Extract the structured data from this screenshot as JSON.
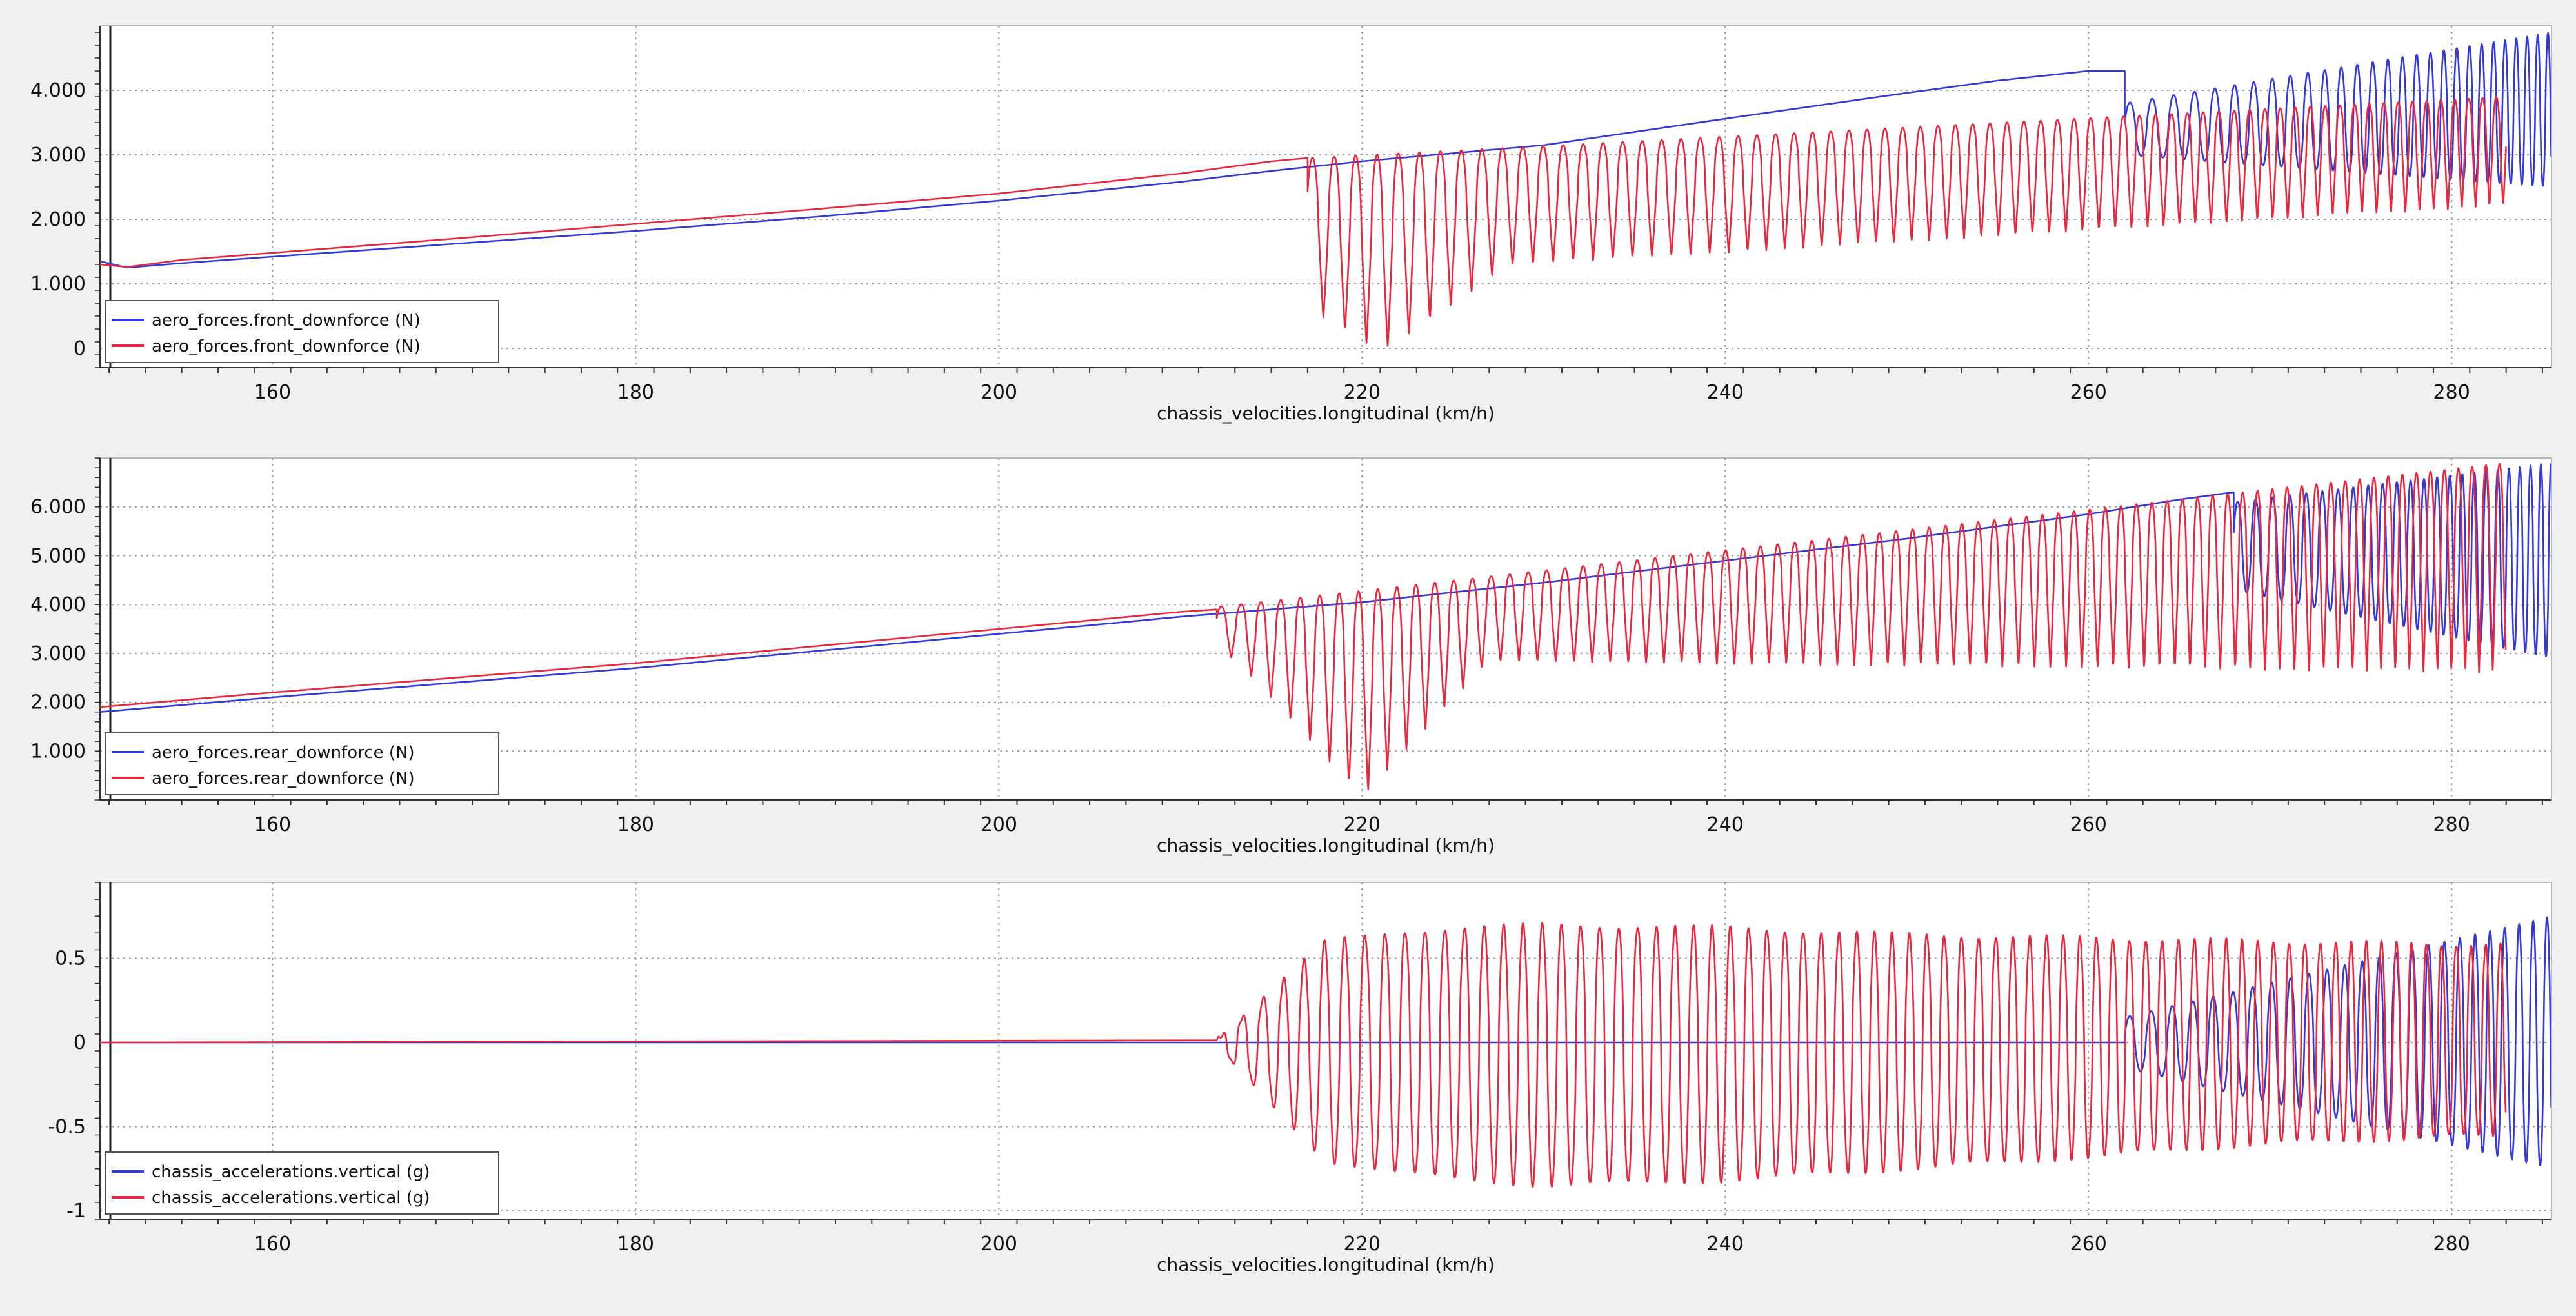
{
  "colors": {
    "series_a": "#3339d6",
    "series_b": "#e8283f",
    "plot_bg": "#ffffff",
    "window_bg": "#f0f0f0",
    "grid": "#9a9a9a",
    "axis": "#333333"
  },
  "chart_data": [
    {
      "type": "line",
      "xlabel": "chassis_velocities.longitudinal (km/h)",
      "ylabel": "",
      "xlim": [
        150.5,
        285.5
      ],
      "ylim": [
        -300,
        5000
      ],
      "xticks": [
        160,
        180,
        200,
        220,
        240,
        260,
        280
      ],
      "xtick_labels": [
        "160",
        "180",
        "200",
        "220",
        "240",
        "260",
        "280"
      ],
      "yticks": [
        0,
        1000,
        2000,
        3000,
        4000
      ],
      "ytick_labels": [
        "0",
        "1.000",
        "2.000",
        "3.000",
        "4.000"
      ],
      "grid": true,
      "legend_position": "bottom-left",
      "series": [
        {
          "name": "aero_forces.front_downforce (N)",
          "color": "#3339d6",
          "x": [
            150.5,
            152,
            155,
            160,
            170,
            180,
            190,
            200,
            210,
            215,
            220,
            230,
            240,
            250,
            255,
            260,
            262
          ],
          "y": [
            1350,
            1250,
            1320,
            1420,
            1620,
            1820,
            2040,
            2290,
            2580,
            2750,
            2900,
            3150,
            3560,
            3960,
            4150,
            4300,
            4300
          ],
          "oscillation": {
            "x_start": 262,
            "x_end": 285.5,
            "center_start": 3400,
            "center_end": 3700,
            "amp_start": 400,
            "amp_end": 1200,
            "period_start": 1.25,
            "period_end": 0.55
          }
        },
        {
          "name": "aero_forces.front_downforce (N)",
          "color": "#e8283f",
          "x": [
            150.5,
            152,
            155,
            160,
            170,
            180,
            190,
            200,
            210,
            215,
            217
          ],
          "y": [
            1300,
            1260,
            1370,
            1480,
            1700,
            1930,
            2160,
            2400,
            2710,
            2900,
            2950
          ],
          "oscillation": {
            "x_start": 217,
            "x_end": 283,
            "peak_start": 2950,
            "peak_end": 3900,
            "trough_start": 1100,
            "trough_end": 2200,
            "trough_peak": -50,
            "trough_peak_x": 221,
            "period_start": 1.2,
            "period_end": 0.75
          }
        }
      ]
    },
    {
      "type": "line",
      "xlabel": "chassis_velocities.longitudinal (km/h)",
      "ylabel": "",
      "xlim": [
        150.5,
        285.5
      ],
      "ylim": [
        0,
        7000
      ],
      "xticks": [
        160,
        180,
        200,
        220,
        240,
        260,
        280
      ],
      "xtick_labels": [
        "160",
        "180",
        "200",
        "220",
        "240",
        "260",
        "280"
      ],
      "yticks": [
        1000,
        2000,
        3000,
        4000,
        5000,
        6000
      ],
      "ytick_labels": [
        "1.000",
        "2.000",
        "3.000",
        "4.000",
        "5.000",
        "6.000"
      ],
      "grid": true,
      "legend_position": "bottom-left",
      "series": [
        {
          "name": "aero_forces.rear_downforce (N)",
          "color": "#3339d6",
          "x": [
            150.5,
            160,
            170,
            180,
            190,
            200,
            210,
            220,
            230,
            240,
            250,
            260,
            265,
            268
          ],
          "y": [
            1800,
            2100,
            2400,
            2700,
            3050,
            3400,
            3750,
            4050,
            4450,
            4900,
            5350,
            5850,
            6150,
            6300
          ],
          "oscillation": {
            "x_start": 268,
            "x_end": 285.5,
            "center_start": 5200,
            "center_end": 4900,
            "amp_start": 900,
            "amp_end": 2000,
            "period_start": 1.0,
            "period_end": 0.55
          }
        },
        {
          "name": "aero_forces.rear_downforce (N)",
          "color": "#e8283f",
          "x": [
            150.5,
            160,
            170,
            180,
            190,
            200,
            210,
            212
          ],
          "y": [
            1900,
            2200,
            2500,
            2800,
            3150,
            3500,
            3850,
            3900
          ],
          "oscillation": {
            "x_start": 212,
            "x_end": 283,
            "peak_start": 3950,
            "peak_end": 6900,
            "trough_start": 2900,
            "trough_end": 2600,
            "trough_peak": 50,
            "trough_peak_x": 220,
            "period_start": 1.1,
            "period_end": 0.75
          }
        }
      ]
    },
    {
      "type": "line",
      "xlabel": "chassis_velocities.longitudinal (km/h)",
      "ylabel": "",
      "xlim": [
        150.5,
        285.5
      ],
      "ylim": [
        -1.05,
        0.95
      ],
      "xticks": [
        160,
        180,
        200,
        220,
        240,
        260,
        280
      ],
      "xtick_labels": [
        "160",
        "180",
        "200",
        "220",
        "240",
        "260",
        "280"
      ],
      "yticks": [
        -1,
        -0.5,
        0,
        0.5
      ],
      "ytick_labels": [
        "-1",
        "-0.5",
        "0",
        "0.5"
      ],
      "grid": true,
      "legend_position": "bottom-left",
      "series": [
        {
          "name": "chassis_accelerations.vertical (g)",
          "color": "#3339d6",
          "x": [
            150.5,
            262
          ],
          "y": [
            0,
            0
          ],
          "oscillation": {
            "x_start": 262,
            "x_end": 285.5,
            "center_start": 0,
            "center_end": 0,
            "amp_start": 0.15,
            "amp_end": 0.75,
            "period_start": 1.2,
            "period_end": 0.75
          }
        },
        {
          "name": "chassis_accelerations.vertical (g)",
          "color": "#e8283f",
          "x": [
            150.5,
            283
          ],
          "y": [
            0,
            0
          ],
          "oscillation": {
            "x_start": 212,
            "x_end": 283,
            "envelope_x": [
              212,
              218,
              222,
              230,
              240,
              250,
              260,
              270,
              283
            ],
            "envelope_pos": [
              0.02,
              0.6,
              0.66,
              0.7,
              0.68,
              0.64,
              0.62,
              0.6,
              0.58
            ],
            "envelope_neg": [
              0.03,
              0.7,
              0.78,
              0.85,
              0.82,
              0.75,
              0.68,
              0.6,
              0.55
            ],
            "period_start": 1.15,
            "period_end": 0.8
          }
        }
      ]
    }
  ]
}
